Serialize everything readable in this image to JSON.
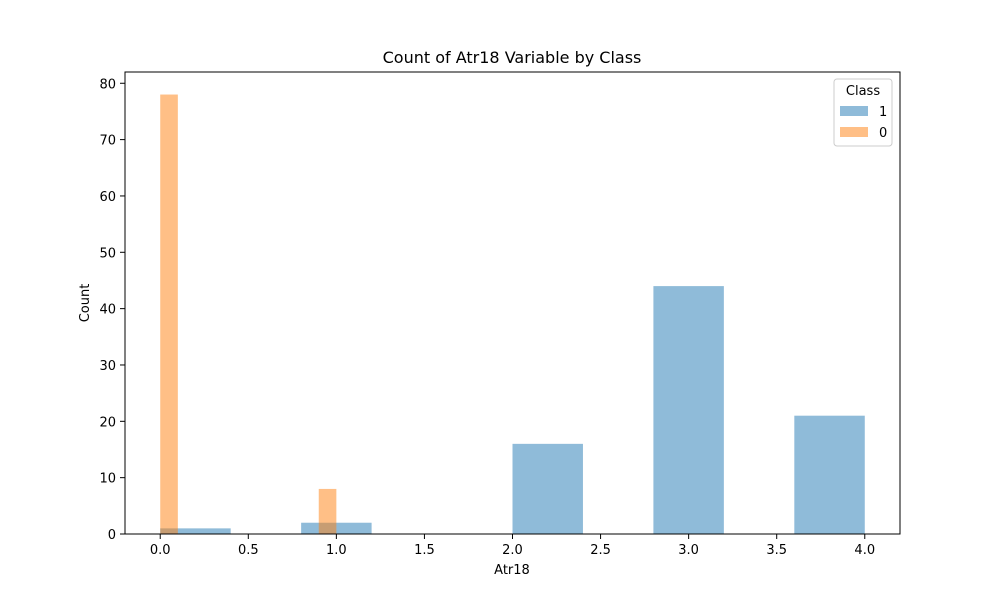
{
  "chart_data": {
    "type": "bar",
    "title": "Count of Atr18 Variable by Class",
    "xlabel": "Atr18",
    "ylabel": "Count",
    "xlim": [
      -0.2,
      4.2
    ],
    "ylim": [
      0,
      82
    ],
    "xticks": [
      0.0,
      0.5,
      1.0,
      1.5,
      2.0,
      2.5,
      3.0,
      3.5,
      4.0
    ],
    "xtick_labels": [
      "0.0",
      "0.5",
      "1.0",
      "1.5",
      "2.0",
      "2.5",
      "3.0",
      "3.5",
      "4.0"
    ],
    "yticks": [
      0,
      10,
      20,
      30,
      40,
      50,
      60,
      70,
      80
    ],
    "ytick_labels": [
      "0",
      "10",
      "20",
      "30",
      "40",
      "50",
      "60",
      "70",
      "80"
    ],
    "grid": false,
    "legend": {
      "title": "Class",
      "position": "top-right"
    },
    "series": [
      {
        "name": "1",
        "color": "#1f77b4",
        "opacity": 0.5,
        "bins": [
          {
            "x0": 0.0,
            "x1": 0.4,
            "count": 1
          },
          {
            "x0": 0.8,
            "x1": 1.2,
            "count": 2
          },
          {
            "x0": 2.0,
            "x1": 2.4,
            "count": 16
          },
          {
            "x0": 2.8,
            "x1": 3.2,
            "count": 44
          },
          {
            "x0": 3.6,
            "x1": 4.0,
            "count": 21
          }
        ]
      },
      {
        "name": "0",
        "color": "#ff7f0e",
        "opacity": 0.5,
        "bins": [
          {
            "x0": 0.0,
            "x1": 0.1,
            "count": 78
          },
          {
            "x0": 0.9,
            "x1": 1.0,
            "count": 8
          }
        ]
      }
    ]
  }
}
